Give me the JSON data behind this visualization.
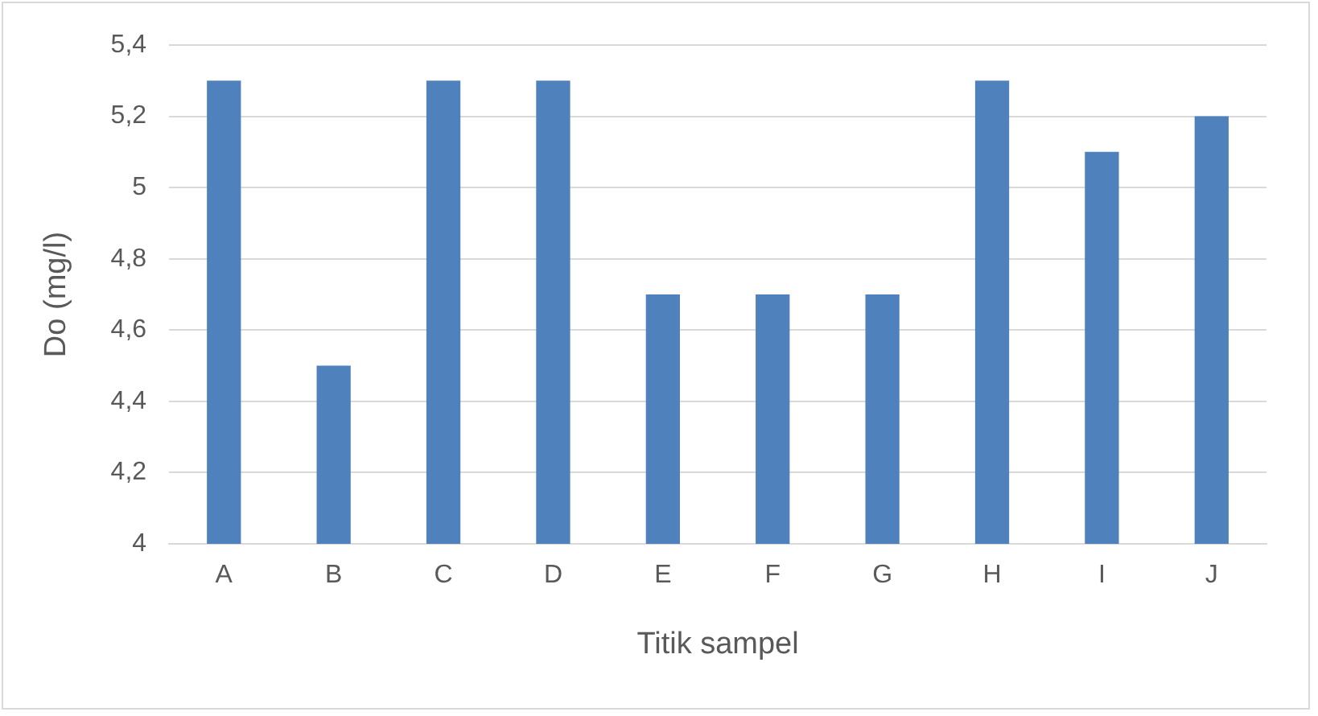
{
  "chart_data": {
    "type": "bar",
    "xlabel": "Titik sampel",
    "ylabel": "Do (mg/l)",
    "categories": [
      "A",
      "B",
      "C",
      "D",
      "E",
      "F",
      "G",
      "H",
      "I",
      "J"
    ],
    "values": [
      5.3,
      4.5,
      5.3,
      5.3,
      4.7,
      4.7,
      4.7,
      5.3,
      5.1,
      5.2
    ],
    "color": "#4f81bd",
    "ylim": [
      4,
      5.4
    ],
    "yticks": [
      4,
      {
        "value": 4.2,
        "label": "4,2"
      },
      {
        "value": 4.4,
        "label": "4,4"
      },
      {
        "value": 4.6,
        "label": "4,6"
      },
      {
        "value": 4.8,
        "label": "4,8"
      },
      5,
      {
        "value": 5.2,
        "label": "5,2"
      },
      {
        "value": 5.4,
        "label": "5,4"
      }
    ],
    "grid": "y",
    "legend": false
  }
}
